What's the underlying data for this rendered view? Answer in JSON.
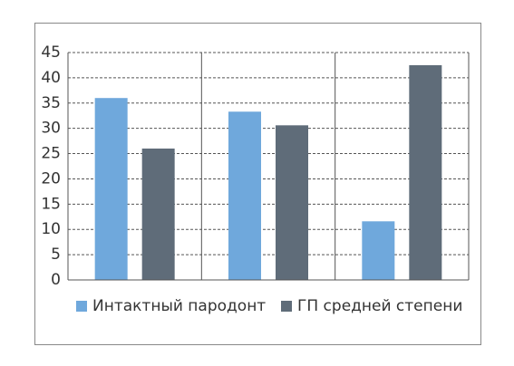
{
  "chart_data": {
    "type": "bar",
    "categories": [
      null,
      null,
      null
    ],
    "series": [
      {
        "name": "Интактный пародонт",
        "color": "#6fa8dc",
        "values": [
          36,
          33.3,
          11.6
        ]
      },
      {
        "name": "ГП средней степени",
        "color": "#5f6c79",
        "values": [
          26,
          30.6,
          42.5
        ]
      }
    ],
    "ylim": [
      0,
      45
    ],
    "yticks": [
      0,
      5,
      10,
      15,
      20,
      25,
      30,
      35,
      40,
      45
    ],
    "grid": true,
    "legend": "bottom"
  }
}
